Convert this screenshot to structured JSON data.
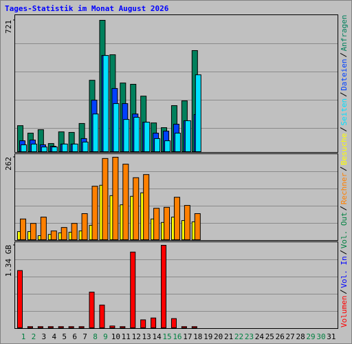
{
  "chart_data": [
    {
      "type": "bar",
      "title": "Tages-Statistik im Monat August 2026",
      "ylim": [
        0,
        721
      ],
      "yticks": [
        721
      ],
      "series": [
        {
          "name": "Seiten",
          "color": "#00e0ff",
          "values": [
            38,
            42,
            26,
            26,
            42,
            42,
            53,
            207,
            528,
            264,
            177,
            189,
            162,
            72,
            60,
            102,
            170,
            422,
            null,
            null,
            null,
            null,
            null,
            null,
            null,
            null,
            null,
            null,
            null,
            null,
            null
          ]
        },
        {
          "name": "Dateien",
          "color": "#0040ff",
          "values": [
            60,
            64,
            38,
            30,
            42,
            42,
            72,
            283,
            528,
            347,
            264,
            207,
            162,
            102,
            113,
            151,
            170,
            204,
            null,
            null,
            null,
            null,
            null,
            null,
            null,
            null,
            null,
            null,
            null,
            null,
            null
          ]
        },
        {
          "name": "Anfragen",
          "color": "#00805c",
          "values": [
            143,
            102,
            121,
            45,
            109,
            106,
            155,
            392,
            721,
            532,
            377,
            370,
            305,
            158,
            132,
            253,
            279,
            555,
            null,
            null,
            null,
            null,
            null,
            null,
            null,
            null,
            null,
            null,
            null,
            null,
            null
          ]
        }
      ]
    },
    {
      "type": "bar",
      "ylim": [
        0,
        262
      ],
      "yticks": [
        262
      ],
      "series": [
        {
          "name": "Rechner",
          "color": "#ff8000",
          "values": [
            66,
            52,
            72,
            28,
            39,
            52,
            83,
            170,
            258,
            262,
            240,
            197,
            207,
            100,
            103,
            135,
            109,
            83,
            null,
            null,
            null,
            null,
            null,
            null,
            null,
            null,
            null,
            null,
            null,
            null,
            null
          ]
        },
        {
          "name": "Besuche",
          "color": "#ffff00",
          "values": [
            26,
            26,
            13,
            17,
            22,
            24,
            28,
            46,
            173,
            140,
            111,
            138,
            149,
            66,
            55,
            72,
            61,
            57,
            null,
            null,
            null,
            null,
            null,
            null,
            null,
            null,
            null,
            null,
            null,
            null,
            null
          ]
        }
      ]
    },
    {
      "type": "bar",
      "ylim": [
        0,
        1.34
      ],
      "yticks": [
        {
          "value": 1.34,
          "label": "1.34 GB"
        }
      ],
      "categories": [
        "1",
        "2",
        "3",
        "4",
        "5",
        "6",
        "7",
        "8",
        "9",
        "10",
        "11",
        "12",
        "13",
        "14",
        "15",
        "16",
        "17",
        "18",
        "19",
        "20",
        "21",
        "22",
        "23",
        "24",
        "25",
        "26",
        "27",
        "28",
        "29",
        "30",
        "31"
      ],
      "weekend_days": [
        0,
        1,
        7,
        8,
        14,
        15,
        21,
        22,
        28,
        29
      ],
      "weekend_color": "#008040",
      "series": [
        {
          "name": "Volumen",
          "color": "#ff0000",
          "values": [
            0.93,
            0.02,
            0.02,
            0.02,
            0.02,
            0.02,
            0.02,
            0.58,
            0.37,
            0.03,
            0.02,
            1.23,
            0.13,
            0.16,
            1.34,
            0.15,
            0.02,
            0.02,
            null,
            null,
            null,
            null,
            null,
            null,
            null,
            null,
            null,
            null,
            null,
            null,
            null
          ]
        },
        {
          "name": "Vol. In",
          "color": "#0000ff",
          "values": [
            null,
            null,
            null,
            null,
            null,
            null,
            null,
            null,
            null,
            null,
            null,
            null,
            null,
            null,
            null,
            null,
            null,
            null,
            null,
            null,
            null,
            null,
            null,
            null,
            null,
            null,
            null,
            null,
            null,
            null,
            null
          ]
        },
        {
          "name": "Vol. Out",
          "color": "#008040",
          "values": [
            null,
            null,
            null,
            null,
            null,
            null,
            null,
            null,
            null,
            null,
            null,
            null,
            null,
            null,
            null,
            null,
            null,
            null,
            null,
            null,
            null,
            null,
            null,
            null,
            null,
            null,
            null,
            null,
            null,
            null,
            null
          ]
        }
      ]
    }
  ]
}
